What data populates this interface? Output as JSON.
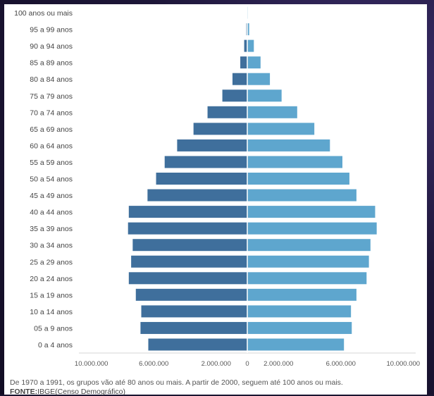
{
  "chart_data": {
    "type": "bar",
    "orientation": "horizontal-population-pyramid",
    "categories": [
      "100 anos ou mais",
      "95 a 99 anos",
      "90 a 94 anos",
      "85 a 89 anos",
      "80 a 84 anos",
      "75 a 79 anos",
      "70 a 74 anos",
      "65 a 69 anos",
      "60 a 64 anos",
      "55 a 59 anos",
      "50 a 54 anos",
      "45 a 49 anos",
      "40 a 44 anos",
      "35 a 39 anos",
      "30 a 34 anos",
      "25 a 29 anos",
      "20 a 24 anos",
      "15 a 19 anos",
      "10 a 14 anos",
      "05 a 9 anos",
      "0 a 4 anos"
    ],
    "series": [
      {
        "values": [
          -10000,
          -60000,
          -200000,
          -450000,
          -950000,
          -1600000,
          -2550000,
          -3450000,
          -4500000,
          -5300000,
          -5850000,
          -6400000,
          -7600000,
          -7650000,
          -7350000,
          -7450000,
          -7600000,
          -7150000,
          -6800000,
          -6850000,
          -6350000
        ],
        "color": "#3f6f9c"
      },
      {
        "values": [
          15000,
          120000,
          420000,
          850000,
          1450000,
          2200000,
          3200000,
          4300000,
          5300000,
          6100000,
          6550000,
          7000000,
          8200000,
          8300000,
          7900000,
          7800000,
          7650000,
          7000000,
          6650000,
          6700000,
          6200000
        ],
        "color": "#5ea6ce"
      }
    ],
    "xticks": [
      "10.000.000",
      "6.000.000",
      "2.000.000",
      "0",
      "2.000.000",
      "6.000.000",
      "10.000.000"
    ],
    "xtick_values": [
      -10000000,
      -6000000,
      -2000000,
      0,
      2000000,
      6000000,
      10000000
    ],
    "xlim": [
      -10800000,
      10800000
    ]
  },
  "caption": "De 1970 a 1991, os grupos vão até 80 anos ou mais. A partir de 2000, seguem até 100 anos ou mais.",
  "source_label": "FONTE:",
  "source_text": "IBGE(Censo Demográfico)"
}
